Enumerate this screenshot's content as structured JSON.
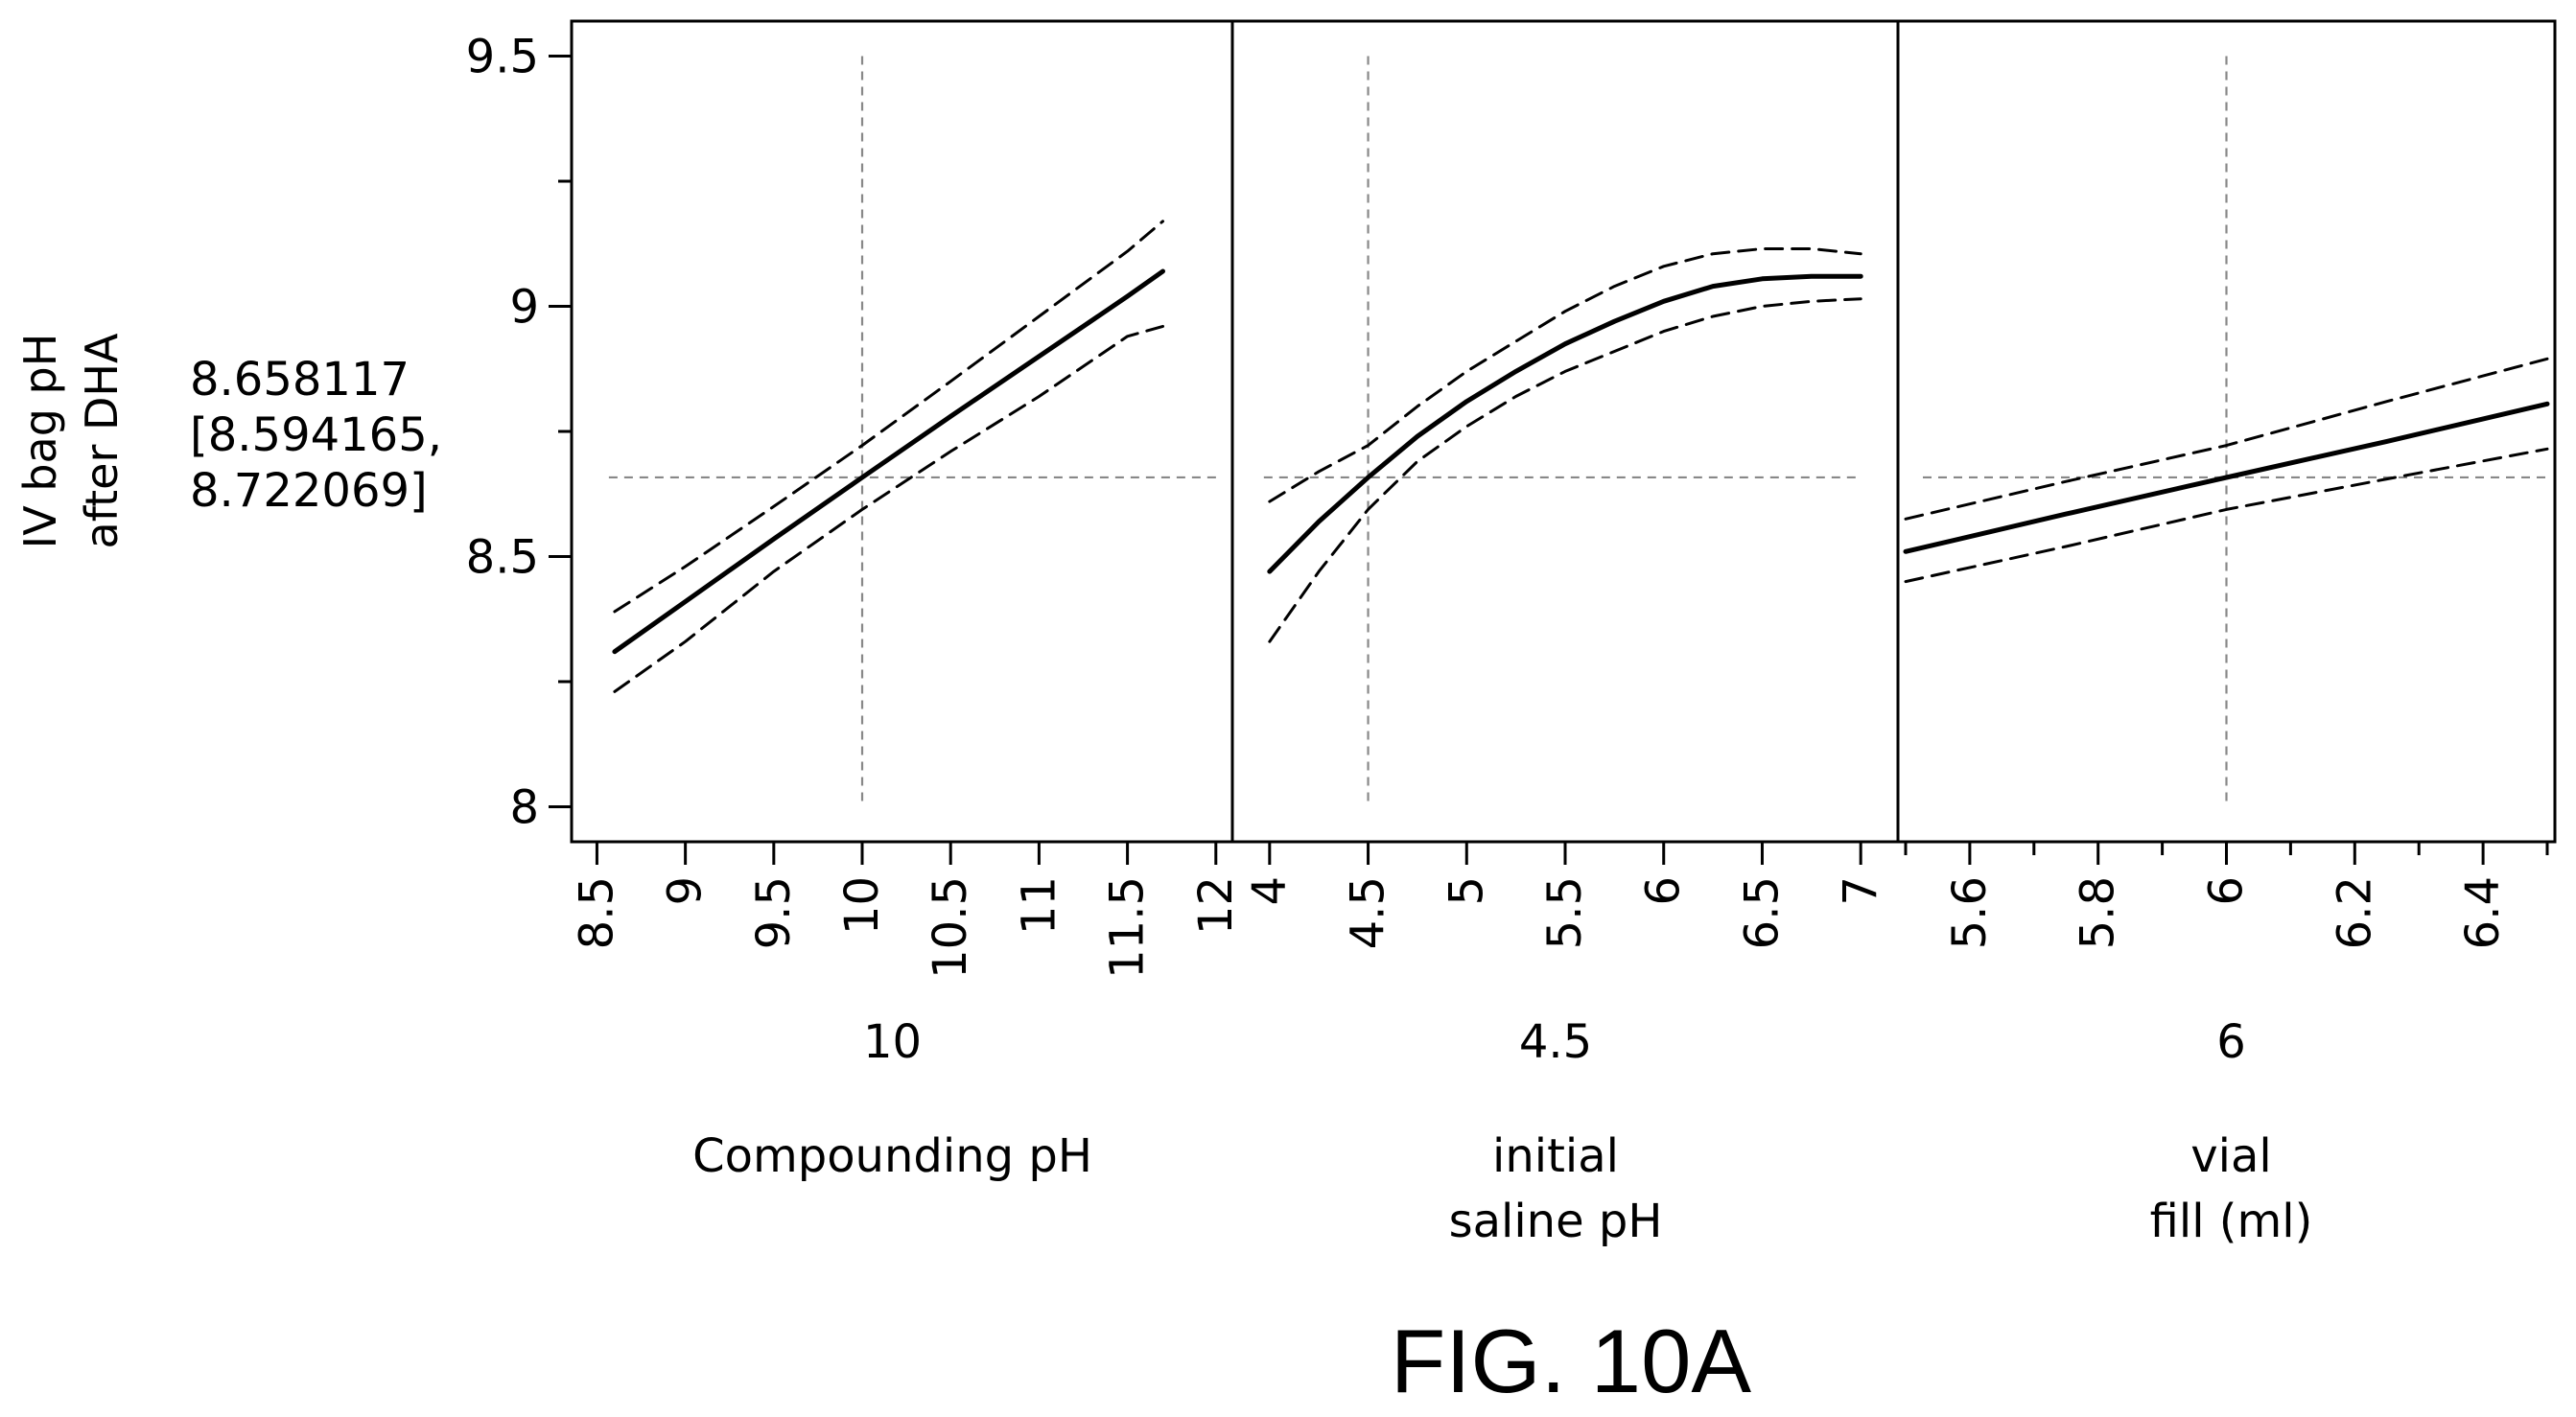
{
  "figure": {
    "caption": "FIG. 10A"
  },
  "y_axis": {
    "label_lines": [
      "IV bag pH",
      "after DHA"
    ],
    "predicted_value": "8.658117",
    "confidence_lines": [
      "[8.594165,",
      "8.722069]"
    ],
    "ylim": [
      7.93,
      9.57
    ],
    "ticks": [
      8,
      8.5,
      9,
      9.5
    ],
    "tick_labels": [
      "8",
      "8.5",
      "9",
      "9.5"
    ],
    "minor_ticks": [
      8.25,
      8.75,
      9.25
    ],
    "reference_y": 8.658117
  },
  "chart_data": [
    {
      "type": "line",
      "xlabel_lines": [
        "Compounding pH"
      ],
      "current_value": "10",
      "xlim": [
        8.4,
        12.05
      ],
      "ticks": [
        8.5,
        9,
        9.5,
        10,
        10.5,
        11,
        11.5,
        12
      ],
      "tick_labels": [
        "8.5",
        "9",
        "9.5",
        "10",
        "10.5",
        "11",
        "11.5",
        "12"
      ],
      "reference_x": 10,
      "x": [
        8.6,
        9.0,
        9.5,
        10.0,
        10.5,
        11.0,
        11.5,
        11.7
      ],
      "series": [
        {
          "role": "prediction",
          "values": [
            8.31,
            8.41,
            8.535,
            8.658,
            8.78,
            8.9,
            9.02,
            9.07
          ]
        },
        {
          "role": "upper",
          "values": [
            8.39,
            8.48,
            8.6,
            8.722,
            8.85,
            8.98,
            9.11,
            9.17
          ]
        },
        {
          "role": "lower",
          "values": [
            8.23,
            8.33,
            8.47,
            8.594,
            8.71,
            8.82,
            8.94,
            8.96
          ]
        }
      ]
    },
    {
      "type": "line",
      "xlabel_lines": [
        "initial",
        "saline pH"
      ],
      "current_value": "4.5",
      "xlim": [
        3.85,
        7.15
      ],
      "ticks": [
        4,
        4.5,
        5,
        5.5,
        6,
        6.5,
        7
      ],
      "tick_labels": [
        "4",
        "4.5",
        "5",
        "5.5",
        "6",
        "6.5",
        "7"
      ],
      "reference_x": 4.5,
      "x": [
        4.0,
        4.25,
        4.5,
        4.75,
        5.0,
        5.25,
        5.5,
        5.75,
        6.0,
        6.25,
        6.5,
        6.75,
        7.0
      ],
      "series": [
        {
          "role": "prediction",
          "values": [
            8.47,
            8.57,
            8.658,
            8.74,
            8.81,
            8.87,
            8.925,
            8.97,
            9.01,
            9.04,
            9.055,
            9.06,
            9.06
          ]
        },
        {
          "role": "upper",
          "values": [
            8.61,
            8.67,
            8.722,
            8.8,
            8.87,
            8.93,
            8.99,
            9.04,
            9.08,
            9.105,
            9.115,
            9.115,
            9.105
          ]
        },
        {
          "role": "lower",
          "values": [
            8.33,
            8.47,
            8.594,
            8.69,
            8.76,
            8.82,
            8.87,
            8.91,
            8.95,
            8.98,
            9.0,
            9.01,
            9.015
          ]
        }
      ]
    },
    {
      "type": "line",
      "xlabel_lines": [
        "vial",
        "fill (ml)"
      ],
      "current_value": "6",
      "xlim": [
        5.5,
        6.5
      ],
      "ticks": [
        5.6,
        5.8,
        6,
        6.2,
        6.4
      ],
      "tick_labels": [
        "5.6",
        "5.8",
        "6",
        "6.2",
        "6.4"
      ],
      "minor_ticks": [
        5.5,
        5.7,
        5.9,
        6.1,
        6.3,
        6.5
      ],
      "reference_x": 6,
      "x": [
        5.5,
        5.75,
        6.0,
        6.25,
        6.5
      ],
      "series": [
        {
          "role": "prediction",
          "values": [
            8.51,
            8.585,
            8.658,
            8.73,
            8.805
          ]
        },
        {
          "role": "upper",
          "values": [
            8.575,
            8.65,
            8.722,
            8.81,
            8.895
          ]
        },
        {
          "role": "lower",
          "values": [
            8.45,
            8.52,
            8.594,
            8.655,
            8.715
          ]
        }
      ]
    }
  ]
}
